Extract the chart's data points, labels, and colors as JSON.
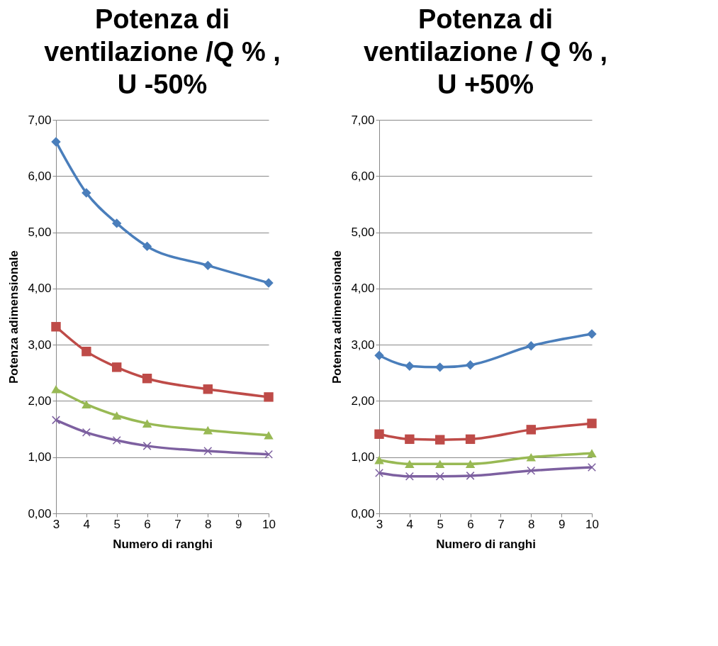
{
  "chart_data": [
    {
      "type": "line",
      "title": "Potenza di ventilazione /Q % , U -50%",
      "xlabel": "Numero di ranghi",
      "ylabel": "Potenza adimensionale",
      "x": [
        3,
        4,
        5,
        6,
        8,
        10
      ],
      "series": [
        {
          "color": "#4a7ebb",
          "marker": "diamond",
          "values": [
            6.61,
            5.7,
            5.16,
            4.75,
            4.41,
            4.1
          ]
        },
        {
          "color": "#be4b48",
          "marker": "square",
          "values": [
            3.32,
            2.88,
            2.6,
            2.4,
            2.21,
            2.07
          ]
        },
        {
          "color": "#98b954",
          "marker": "triangle",
          "values": [
            2.21,
            1.94,
            1.74,
            1.6,
            1.48,
            1.39
          ]
        },
        {
          "color": "#7d60a0",
          "marker": "cross",
          "values": [
            1.66,
            1.44,
            1.3,
            1.2,
            1.11,
            1.05
          ]
        }
      ],
      "xlim": [
        3,
        10
      ],
      "xticks": [
        3,
        4,
        5,
        6,
        7,
        8,
        9,
        10
      ],
      "ylim": [
        0,
        7
      ],
      "yticks": [
        {
          "value": 0,
          "label": "0,00"
        },
        {
          "value": 1,
          "label": "1,00"
        },
        {
          "value": 2,
          "label": "2,00"
        },
        {
          "value": 3,
          "label": "3,00"
        },
        {
          "value": 4,
          "label": "4,00"
        },
        {
          "value": 5,
          "label": "5,00"
        },
        {
          "value": 6,
          "label": "6,00"
        },
        {
          "value": 7,
          "label": "7,00"
        }
      ],
      "grid": "y"
    },
    {
      "type": "line",
      "title": "Potenza di ventilazione / Q % , U +50%",
      "xlabel": "Numero di ranghi",
      "ylabel": "Potenza adimensionale",
      "x": [
        3,
        4,
        5,
        6,
        8,
        10
      ],
      "series": [
        {
          "color": "#4a7ebb",
          "marker": "diamond",
          "values": [
            2.81,
            2.62,
            2.6,
            2.64,
            2.98,
            3.19
          ]
        },
        {
          "color": "#be4b48",
          "marker": "square",
          "values": [
            1.41,
            1.32,
            1.31,
            1.32,
            1.49,
            1.6
          ]
        },
        {
          "color": "#98b954",
          "marker": "triangle",
          "values": [
            0.95,
            0.88,
            0.88,
            0.88,
            1.0,
            1.07
          ]
        },
        {
          "color": "#7d60a0",
          "marker": "cross",
          "values": [
            0.72,
            0.66,
            0.66,
            0.67,
            0.76,
            0.82
          ]
        }
      ],
      "xlim": [
        3,
        10
      ],
      "xticks": [
        3,
        4,
        5,
        6,
        7,
        8,
        9,
        10
      ],
      "ylim": [
        0,
        7
      ],
      "yticks": [
        {
          "value": 0,
          "label": "0,00"
        },
        {
          "value": 1,
          "label": "1,00"
        },
        {
          "value": 2,
          "label": "2,00"
        },
        {
          "value": 3,
          "label": "3,00"
        },
        {
          "value": 4,
          "label": "4,00"
        },
        {
          "value": 5,
          "label": "5,00"
        },
        {
          "value": 6,
          "label": "6,00"
        },
        {
          "value": 7,
          "label": "7,00"
        }
      ],
      "grid": "y"
    }
  ]
}
